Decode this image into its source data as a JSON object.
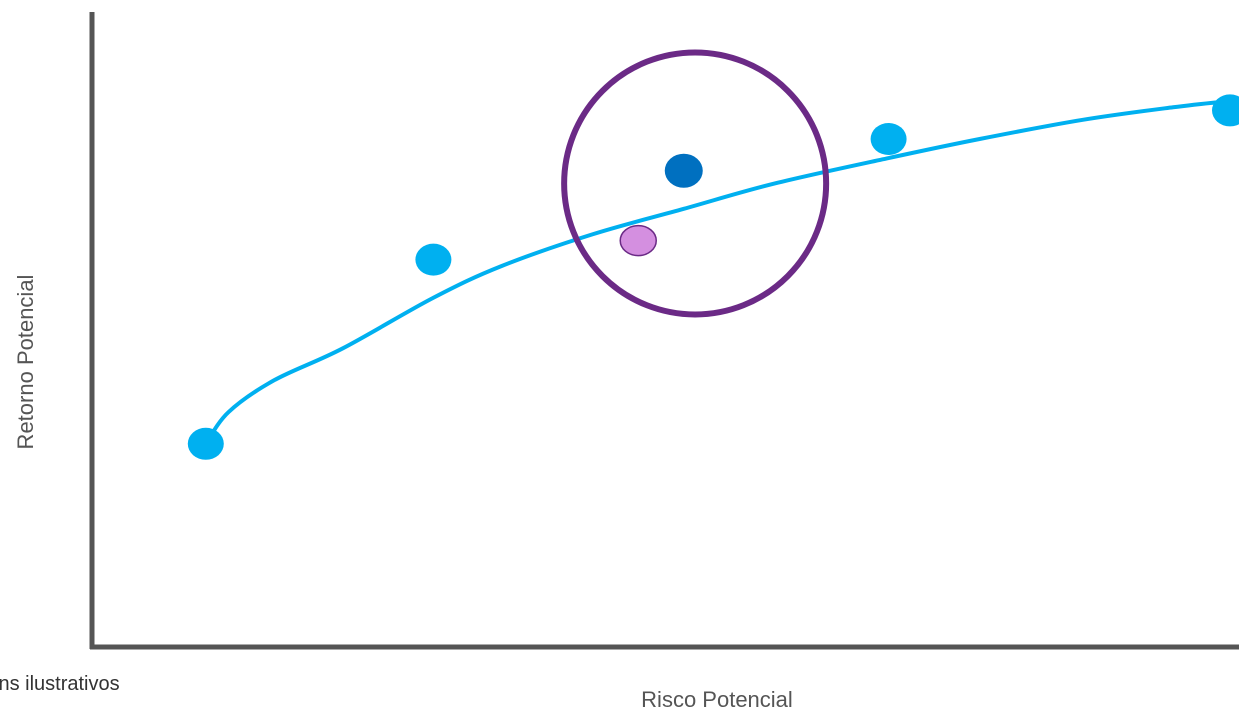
{
  "chart_data": {
    "type": "scatter",
    "title": "",
    "xlabel": "Risco Potencial",
    "ylabel": "Retorno Potencial",
    "footnote": "ins ilustrativos",
    "grid": false,
    "legend": "none",
    "xlim": [
      0,
      100
    ],
    "ylim": [
      0,
      100
    ],
    "frontier": {
      "x": [
        10,
        12,
        16,
        22,
        30,
        36,
        44,
        52,
        60,
        70,
        78,
        87,
        95,
        100
      ],
      "y": [
        32,
        37,
        42,
        47,
        55,
        60,
        65,
        69,
        73,
        77,
        80,
        83,
        85,
        86
      ],
      "color": "#00b0f0"
    },
    "frontier_points": {
      "x": [
        10,
        30,
        52,
        70,
        100
      ],
      "y": [
        32,
        61,
        75,
        80,
        84.5
      ],
      "color": "#00b0f0"
    },
    "highlight_point": {
      "x": 52,
      "y": 75,
      "color": "#0070c0"
    },
    "portfolio_point": {
      "x": 48,
      "y": 64,
      "color": "#d48fe0",
      "stroke": "#6b2a86"
    },
    "highlight_circle": {
      "cx": 53,
      "cy": 73,
      "r": 21,
      "color": "#6b2a86"
    }
  }
}
